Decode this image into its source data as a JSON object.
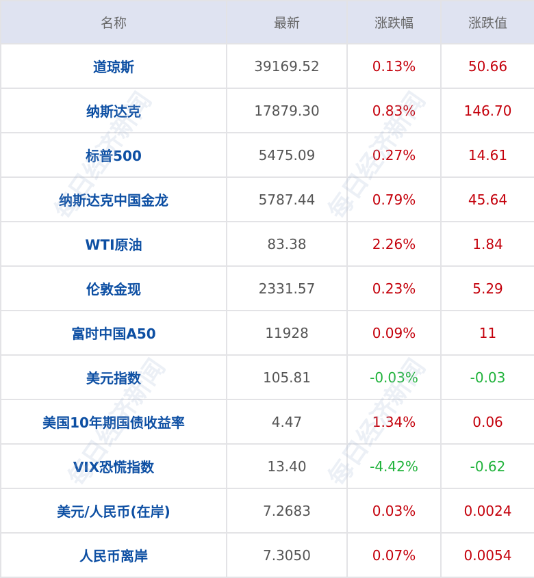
{
  "watermark": "每日经济新闻",
  "colors": {
    "header_bg": "#dfe3f1",
    "name": "#0d4fa3",
    "up": "#c4000b",
    "down": "#1fb23a"
  },
  "headers": [
    "名称",
    "最新",
    "涨跌幅",
    "涨跌值"
  ],
  "rows": [
    {
      "name": "道琼斯",
      "last": "39169.52",
      "pct": "0.13%",
      "chg": "50.66",
      "dir": "up"
    },
    {
      "name": "纳斯达克",
      "last": "17879.30",
      "pct": "0.83%",
      "chg": "146.70",
      "dir": "up"
    },
    {
      "name": "标普500",
      "last": "5475.09",
      "pct": "0.27%",
      "chg": "14.61",
      "dir": "up"
    },
    {
      "name": "纳斯达克中国金龙",
      "last": "5787.44",
      "pct": "0.79%",
      "chg": "45.64",
      "dir": "up"
    },
    {
      "name": "WTI原油",
      "last": "83.38",
      "pct": "2.26%",
      "chg": "1.84",
      "dir": "up"
    },
    {
      "name": "伦敦金现",
      "last": "2331.57",
      "pct": "0.23%",
      "chg": "5.29",
      "dir": "up"
    },
    {
      "name": "富时中国A50",
      "last": "11928",
      "pct": "0.09%",
      "chg": "11",
      "dir": "up"
    },
    {
      "name": "美元指数",
      "last": "105.81",
      "pct": "-0.03%",
      "chg": "-0.03",
      "dir": "down"
    },
    {
      "name": "美国10年期国债收益率",
      "last": "4.47",
      "pct": "1.34%",
      "chg": "0.06",
      "dir": "up"
    },
    {
      "name": "VIX恐慌指数",
      "last": "13.40",
      "pct": "-4.42%",
      "chg": "-0.62",
      "dir": "down"
    },
    {
      "name": "美元/人民币(在岸)",
      "last": "7.2683",
      "pct": "0.03%",
      "chg": "0.0024",
      "dir": "up"
    },
    {
      "name": "人民币离岸",
      "last": "7.3050",
      "pct": "0.07%",
      "chg": "0.0054",
      "dir": "up"
    }
  ]
}
